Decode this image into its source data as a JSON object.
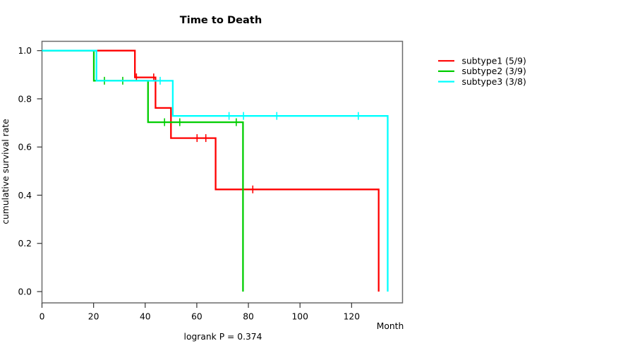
{
  "chart_data": {
    "type": "line",
    "subtype": "kaplan-meier-step-survival",
    "title": "Time to Death",
    "xlabel": "Month",
    "ylabel": "cumulative survival rate",
    "annotation": "logrank P = 0.374",
    "x_ticks": [
      0,
      20,
      40,
      60,
      80,
      100,
      120
    ],
    "y_tick_values": [
      0.0,
      0.2,
      0.4,
      0.6,
      0.8,
      1.0
    ],
    "y_tick_labels": [
      "0.0",
      "0.2",
      "0.4",
      "0.6",
      "0.8",
      "1.0"
    ],
    "xlim": [
      0,
      139.7
    ],
    "ylim": [
      0,
      1
    ],
    "grid": false,
    "legend_position": "right-outside",
    "axis_color": "#333333",
    "box_color": "#6b6b6b",
    "series": [
      {
        "name": "subtype1 (5/9)",
        "color": "#ff0000",
        "steps": [
          [
            0,
            1.0
          ],
          [
            36,
            1.0
          ],
          [
            36,
            0.889
          ],
          [
            44,
            0.889
          ],
          [
            44,
            0.762
          ],
          [
            50,
            0.762
          ],
          [
            50,
            0.637
          ],
          [
            67.3,
            0.637
          ],
          [
            67.3,
            0.424
          ],
          [
            130.5,
            0.424
          ],
          [
            130.5,
            0.0
          ]
        ],
        "censor_marks": [
          [
            36.6,
            0.889
          ],
          [
            43.3,
            0.889
          ],
          [
            60.1,
            0.637
          ],
          [
            63.5,
            0.637
          ],
          [
            81.7,
            0.424
          ]
        ]
      },
      {
        "name": "subtype2 (3/9)",
        "color": "#00cd00",
        "steps": [
          [
            0,
            1.0
          ],
          [
            20.1,
            1.0
          ],
          [
            20.1,
            0.875
          ],
          [
            41.1,
            0.875
          ],
          [
            41.1,
            0.703
          ],
          [
            77.9,
            0.703
          ],
          [
            77.9,
            0.0
          ]
        ],
        "censor_marks": [
          [
            24.2,
            0.875
          ],
          [
            31.3,
            0.875
          ],
          [
            47.5,
            0.703
          ],
          [
            53.4,
            0.703
          ],
          [
            75.3,
            0.703
          ]
        ]
      },
      {
        "name": "subtype3 (3/8)",
        "color": "#00ffff",
        "steps": [
          [
            0,
            1.0
          ],
          [
            21.1,
            1.0
          ],
          [
            21.1,
            0.875
          ],
          [
            50.7,
            0.875
          ],
          [
            50.7,
            0.729
          ],
          [
            134,
            0.729
          ],
          [
            134,
            0.0
          ]
        ],
        "censor_marks": [
          [
            45.8,
            0.875
          ],
          [
            72.5,
            0.729
          ],
          [
            78.1,
            0.729
          ],
          [
            91,
            0.729
          ],
          [
            122.6,
            0.729
          ]
        ]
      }
    ]
  }
}
